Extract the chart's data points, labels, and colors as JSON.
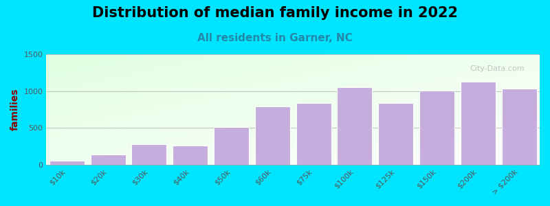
{
  "title": "Distribution of median family income in 2022",
  "subtitle": "All residents in Garner, NC",
  "ylabel": "families",
  "categories": [
    "$10k",
    "$20k",
    "$30k",
    "$40k",
    "$50k",
    "$60k",
    "$75k",
    "$100k",
    "$125k",
    "$150k",
    "$200k",
    "> $200k"
  ],
  "values": [
    50,
    140,
    275,
    255,
    510,
    790,
    840,
    1055,
    840,
    1005,
    1130,
    1035
  ],
  "bar_color": "#c5aede",
  "bar_edge_color": "#ffffff",
  "bg_outer": "#00e5ff",
  "title_color": "#000000",
  "subtitle_color": "#2288aa",
  "ylabel_color": "#8b0000",
  "tick_color": "#555555",
  "ylim": [
    0,
    1500
  ],
  "yticks": [
    0,
    500,
    1000,
    1500
  ],
  "watermark": "City-Data.com",
  "title_fontsize": 15,
  "subtitle_fontsize": 11,
  "ylabel_fontsize": 10
}
